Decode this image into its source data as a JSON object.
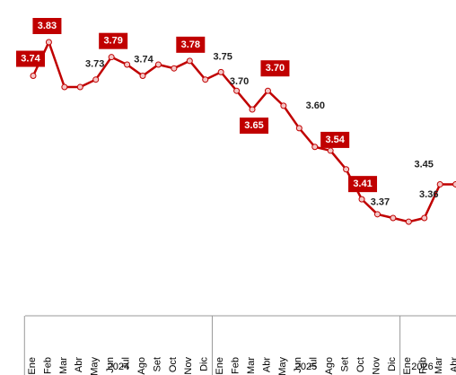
{
  "chart_data": {
    "type": "line",
    "categories": [
      "Ene",
      "Feb",
      "Mar",
      "Abr",
      "May",
      "Jun",
      "Jul",
      "Ago",
      "Set",
      "Oct",
      "Nov",
      "Dic",
      "Ene",
      "Feb",
      "Mar",
      "Abr",
      "May",
      "Jun",
      "Jul",
      "Ago",
      "Set",
      "Oct",
      "Nov",
      "Dic",
      "Ene",
      "Feb",
      "Mar",
      "Abr"
    ],
    "years": [
      "2024",
      "2025",
      "2026"
    ],
    "values": [
      3.74,
      3.83,
      3.71,
      3.71,
      3.73,
      3.79,
      3.77,
      3.74,
      3.77,
      3.76,
      3.78,
      3.73,
      3.75,
      3.7,
      3.65,
      3.7,
      3.66,
      3.6,
      3.55,
      3.54,
      3.49,
      3.41,
      3.37,
      3.36,
      3.35,
      3.36,
      3.45,
      3.45
    ],
    "value_labels": [
      "3.74",
      "3.83",
      null,
      null,
      "3.73",
      "3.79",
      null,
      "3.74",
      null,
      null,
      "3.78",
      null,
      "3.75",
      "3.70",
      "3.65",
      "3.70",
      null,
      "3.60",
      null,
      "3.54",
      null,
      "3.41",
      "3.37",
      null,
      null,
      "3.36",
      "3.45",
      null
    ],
    "color": "#c00000"
  }
}
